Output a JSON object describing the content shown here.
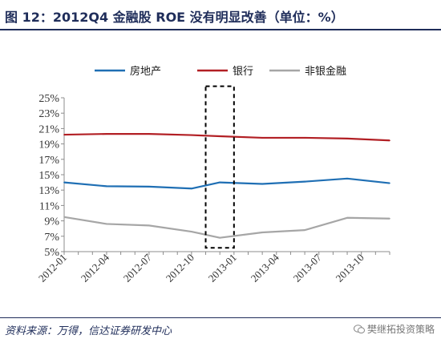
{
  "title": "图 12：2012Q4 金融股 ROE 没有明显改善（单位：%）",
  "source": "资料来源：万得，信达证券研发中心",
  "watermark": "樊继拓投资策略",
  "chart_data": {
    "type": "line",
    "x": [
      "2012-01",
      "2012-02",
      "2012-03",
      "2012-04",
      "2012-05",
      "2012-06",
      "2012-07",
      "2012-08",
      "2012-09",
      "2012-10",
      "2012-11",
      "2012-12",
      "2013-01",
      "2013-02",
      "2013-03",
      "2013-04",
      "2013-05",
      "2013-06",
      "2013-07",
      "2013-08",
      "2013-09",
      "2013-10",
      "2013-11",
      "2013-12"
    ],
    "x_tick_labels": [
      "2012-01",
      "2012-04",
      "2012-07",
      "2012-10",
      "2013-01",
      "2013-04",
      "2013-07",
      "2013-10"
    ],
    "ylim": [
      5,
      25
    ],
    "y_ticks": [
      5,
      7,
      9,
      11,
      13,
      15,
      17,
      19,
      21,
      23,
      25
    ],
    "y_tick_format": "%",
    "legend_position": "top",
    "series": [
      {
        "name": "房地产",
        "color": "#1f6fb4",
        "x": [
          "2012-01",
          "2012-04",
          "2012-07",
          "2012-10",
          "2012-12",
          "2013-03",
          "2013-06",
          "2013-09",
          "2013-12"
        ],
        "values": [
          14.0,
          13.5,
          13.45,
          13.2,
          14.0,
          13.8,
          14.1,
          14.5,
          13.9
        ]
      },
      {
        "name": "银行",
        "color": "#b21f24",
        "x": [
          "2012-01",
          "2012-04",
          "2012-07",
          "2012-10",
          "2012-12",
          "2013-03",
          "2013-06",
          "2013-09",
          "2013-12"
        ],
        "values": [
          20.2,
          20.3,
          20.3,
          20.15,
          20.0,
          19.8,
          19.8,
          19.7,
          19.45
        ]
      },
      {
        "name": "非银金融",
        "color": "#a6a6a6",
        "x": [
          "2012-01",
          "2012-04",
          "2012-07",
          "2012-10",
          "2012-12",
          "2013-03",
          "2013-06",
          "2013-09",
          "2013-12"
        ],
        "values": [
          9.5,
          8.6,
          8.4,
          7.6,
          6.8,
          7.5,
          7.8,
          9.4,
          9.3
        ]
      }
    ],
    "highlight_box": {
      "x": [
        "2012-11",
        "2013-01"
      ],
      "y": [
        5.5,
        26.5
      ],
      "style": "dashed"
    }
  }
}
